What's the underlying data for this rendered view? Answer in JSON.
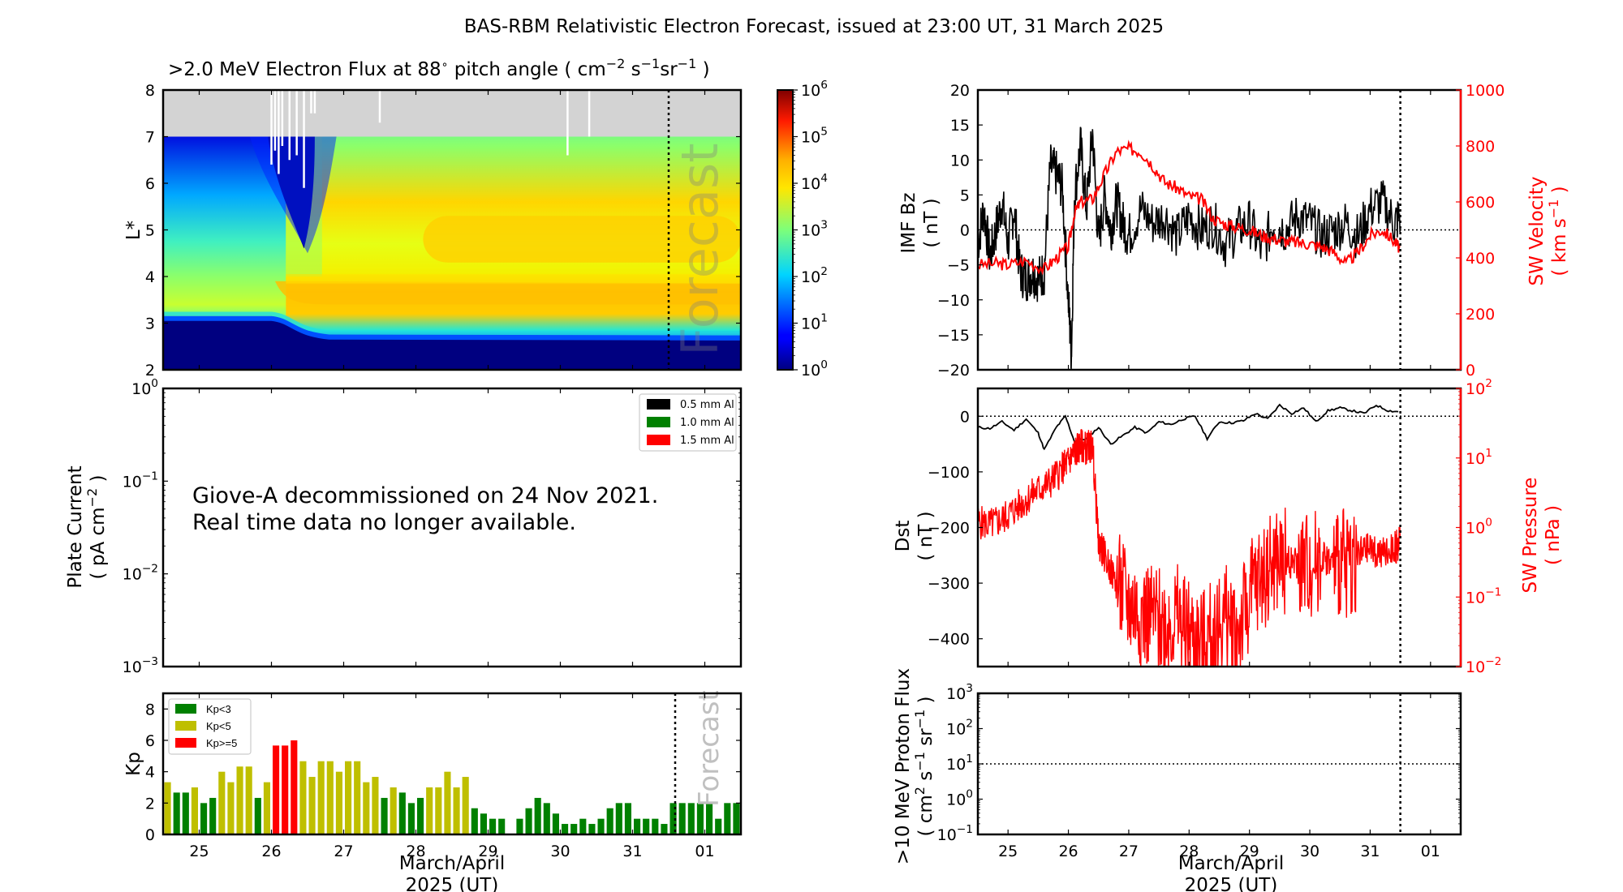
{
  "figure": {
    "title": "BAS-RBM Relativistic Electron Forecast, issued at 23:00 UT, 31 March 2025",
    "xlabel_line1": "March/April",
    "xlabel_line2": "2025 (UT)",
    "day_ticks": [
      "25",
      "26",
      "27",
      "28",
      "29",
      "30",
      "31",
      "01"
    ],
    "forecast_label": "Forecast",
    "forecast_boundary": "31 March 2025 12:00 UT"
  },
  "chart_data": [
    {
      "id": "electron_flux",
      "type": "heatmap",
      "title": ">2.0 MeV Electron Flux at 88° pitch angle (cm^-2 s^-1 sr^-1)",
      "title_parts": {
        "main": ">2.0 MeV Electron Flux at 88",
        "deg": "∘",
        "pitch": " pitch angle ( cm",
        "exp1": "−2",
        "s": " s",
        "exp2": "−1",
        "sr": "sr",
        "exp3": "−1",
        "close": " )"
      },
      "ylabel": "L*",
      "ylim": [
        2,
        8
      ],
      "yticks": [
        "2",
        "3",
        "4",
        "5",
        "6",
        "7",
        "8"
      ],
      "xlim_days": [
        24.5,
        32.5
      ],
      "no_data_region_L": [
        7,
        8
      ],
      "colorbar": {
        "scale": "log",
        "range": [
          1,
          1000000
        ],
        "ticks": [
          "10^0",
          "10^1",
          "10^2",
          "10^3",
          "10^4",
          "10^5",
          "10^6"
        ],
        "colormap": "jet"
      },
      "features": [
        {
          "description": "inner-belt slot boundary (deep blue below)",
          "L_before_26": 3.1,
          "L_after_27": 2.65
        },
        {
          "description": "outer belt peak (orange, ~10^4.3)",
          "L_range": [
            3.3,
            3.9
          ],
          "from_day": 26.2
        },
        {
          "description": "dropout (dark blue) during storm",
          "days": [
            26.0,
            26.7
          ],
          "L_range": [
            4.6,
            7.0
          ]
        },
        {
          "description": "high-L enhancement (orange, ~10^4)",
          "L_range": [
            4.3,
            5.2
          ],
          "from_day": 28.0
        }
      ]
    },
    {
      "id": "plate_current",
      "type": "line",
      "ylabel": "Plate Current",
      "yunit_parts": {
        "open": "( pA cm",
        "exp": "−2",
        "close": " )"
      },
      "yscale": "log",
      "ylim": [
        0.001,
        1
      ],
      "yticks": [
        "10^-3",
        "10^-2",
        "10^-1",
        "10^0"
      ],
      "legend": [
        {
          "label": "0.5 mm Al",
          "color": "#000000"
        },
        {
          "label": "1.0 mm Al",
          "color": "#008000"
        },
        {
          "label": "1.5 mm Al",
          "color": "#ff0000"
        }
      ],
      "legend_position": "top-right",
      "annotation_line1": "Giove-A decommissioned on 24 Nov 2021.",
      "annotation_line2": "Real time data no longer available.",
      "series": []
    },
    {
      "id": "kp",
      "type": "bar",
      "ylabel": "Kp",
      "ylim": [
        0,
        9
      ],
      "yticks": [
        "0",
        "2",
        "4",
        "6",
        "8"
      ],
      "bar_interval_hours": 3,
      "start_day": 24.5,
      "legend": [
        {
          "label": "Kp<3",
          "color": "#008000"
        },
        {
          "label": "Kp<5",
          "color": "#bfbf00"
        },
        {
          "label": "Kp>=5",
          "color": "#ff0000"
        }
      ],
      "legend_position": "top-left",
      "values": [
        3.33,
        2.67,
        2.67,
        3.0,
        2.0,
        2.33,
        4.0,
        3.33,
        4.33,
        4.33,
        2.33,
        3.33,
        5.67,
        5.67,
        6.0,
        4.67,
        3.67,
        4.67,
        4.67,
        4.0,
        4.67,
        4.67,
        3.33,
        3.67,
        2.33,
        3.0,
        2.67,
        2.0,
        2.33,
        3.0,
        3.0,
        4.0,
        3.0,
        3.67,
        1.67,
        1.33,
        1.0,
        1.0,
        0,
        1.0,
        1.67,
        2.33,
        2.0,
        1.33,
        0.67,
        0.67,
        1.0,
        0.67,
        1.0,
        1.67,
        2.0,
        2.0,
        1.0,
        1.0,
        1.0,
        0.67,
        2.0,
        2.0,
        2.0,
        2.0,
        2.0,
        1.0,
        2.0,
        2.0
      ]
    },
    {
      "id": "imf_sw_velocity",
      "type": "line",
      "ylabel_left": "IMF Bz",
      "yunit_left": "( nT )",
      "ylim_left": [
        -20,
        20
      ],
      "yticks_left": [
        "−20",
        "−15",
        "−10",
        "−5",
        "0",
        "5",
        "10",
        "15",
        "20"
      ],
      "ylabel_right": "SW Velocity",
      "yunit_right_parts": {
        "open": "( km s",
        "exp": "−1",
        "close": " )"
      },
      "ylim_right": [
        0,
        1000
      ],
      "yticks_right": [
        "0",
        "200",
        "400",
        "600",
        "800",
        "1000"
      ],
      "reference_line_left": 0,
      "series": [
        {
          "name": "IMF Bz (nT)",
          "color": "#000000",
          "axis": "left",
          "x_days": [
            24.5,
            24.6,
            24.7,
            24.8,
            24.9,
            25.0,
            25.1,
            25.2,
            25.3,
            25.4,
            25.5,
            25.6,
            25.7,
            25.8,
            25.9,
            26.0,
            26.05,
            26.1,
            26.2,
            26.3,
            26.4,
            26.5,
            26.6,
            26.7,
            26.8,
            26.9,
            27.0,
            27.2,
            27.4,
            27.6,
            27.8,
            28.0,
            28.2,
            28.4,
            28.6,
            28.8,
            29.0,
            29.2,
            29.4,
            29.6,
            29.8,
            30.0,
            30.2,
            30.4,
            30.6,
            30.8,
            31.0,
            31.2,
            31.4,
            31.5
          ],
          "y": [
            -2,
            3,
            -4,
            0,
            4,
            -2,
            3,
            -6,
            -7,
            -6,
            -7,
            -6,
            9,
            8,
            6,
            -10,
            -18,
            5,
            12,
            3,
            14,
            -2,
            5,
            0,
            4,
            1,
            -1,
            3,
            1,
            2,
            -1,
            2,
            0,
            1,
            -2,
            0,
            1,
            -3,
            1,
            0,
            2,
            1,
            -1,
            0,
            1,
            -1,
            3,
            4,
            1,
            2
          ]
        },
        {
          "name": "SW Velocity (km/s)",
          "color": "#ff0000",
          "axis": "right",
          "x_days": [
            24.5,
            24.8,
            25.0,
            25.3,
            25.6,
            25.8,
            26.0,
            26.1,
            26.2,
            26.4,
            26.6,
            26.8,
            27.0,
            27.2,
            27.4,
            27.6,
            27.8,
            28.0,
            28.2,
            28.4,
            28.6,
            28.8,
            29.0,
            29.2,
            29.4,
            29.6,
            29.8,
            30.0,
            30.2,
            30.4,
            30.6,
            30.8,
            31.0,
            31.2,
            31.4,
            31.5
          ],
          "y": [
            375,
            380,
            375,
            390,
            360,
            400,
            440,
            560,
            600,
            610,
            700,
            780,
            790,
            780,
            730,
            670,
            650,
            620,
            610,
            540,
            520,
            510,
            500,
            480,
            470,
            460,
            455,
            450,
            440,
            420,
            380,
            420,
            480,
            500,
            460,
            430
          ]
        }
      ]
    },
    {
      "id": "dst_sw_pressure",
      "type": "line",
      "ylabel_left": "Dst",
      "yunit_left": "( nT )",
      "ylim_left": [
        -450,
        50
      ],
      "yticks_left": [
        "−400",
        "−300",
        "−200",
        "−100",
        "0"
      ],
      "ylabel_right": "SW Pressure",
      "yunit_right": "( nPa )",
      "yscale_right": "log",
      "ylim_right": [
        0.01,
        100
      ],
      "yticks_right": [
        "10^-2",
        "10^-1",
        "10^0",
        "10^1",
        "10^2"
      ],
      "reference_line_left": 0,
      "series": [
        {
          "name": "Dst (nT)",
          "color": "#000000",
          "axis": "left",
          "x_days": [
            24.5,
            24.7,
            24.9,
            25.1,
            25.3,
            25.5,
            25.6,
            25.8,
            25.95,
            26.1,
            26.3,
            26.5,
            26.7,
            26.9,
            27.1,
            27.3,
            27.5,
            27.7,
            27.9,
            28.1,
            28.3,
            28.5,
            28.7,
            28.9,
            29.1,
            29.3,
            29.5,
            29.7,
            29.9,
            30.1,
            30.3,
            30.5,
            30.7,
            30.9,
            31.1,
            31.3,
            31.5
          ],
          "y": [
            -20,
            -22,
            -10,
            -25,
            -5,
            -30,
            -60,
            -20,
            0,
            -45,
            -40,
            -20,
            -50,
            -35,
            -20,
            -30,
            -10,
            -15,
            -5,
            0,
            -40,
            -10,
            -12,
            -8,
            5,
            -5,
            20,
            5,
            15,
            -10,
            10,
            15,
            10,
            5,
            20,
            10,
            8
          ]
        },
        {
          "name": "SW Pressure (nPa)",
          "color": "#ff0000",
          "axis": "right",
          "x_days": [
            24.5,
            24.7,
            24.9,
            25.1,
            25.3,
            25.5,
            25.7,
            25.9,
            26.0,
            26.1,
            26.2,
            26.3,
            26.4,
            26.5,
            26.6,
            26.8,
            27.0,
            27.2,
            27.4,
            27.6,
            27.8,
            28.0,
            28.2,
            28.4,
            28.6,
            28.8,
            29.0,
            29.2,
            29.4,
            29.6,
            29.8,
            30.0,
            30.2,
            30.4,
            30.6,
            30.8,
            31.0,
            31.2,
            31.4,
            31.5
          ],
          "y": [
            1.2,
            1.1,
            1.3,
            1.8,
            2.5,
            3.5,
            4.5,
            7,
            9,
            12,
            15,
            14,
            15,
            0.6,
            0.4,
            0.15,
            0.08,
            0.06,
            0.05,
            0.04,
            0.05,
            0.03,
            0.02,
            0.03,
            0.05,
            0.03,
            0.1,
            0.2,
            0.3,
            0.35,
            0.3,
            0.3,
            0.4,
            0.3,
            0.3,
            0.4,
            0.5,
            0.4,
            0.5,
            0.6
          ]
        }
      ]
    },
    {
      "id": "proton_flux",
      "type": "line",
      "ylabel": ">10 MeV Proton Flux",
      "yunit_parts": {
        "open": "( cm",
        "exp1": "2",
        "s": " s",
        "exp2": "−1",
        "sr": " sr",
        "exp3": "−1",
        "close": " )"
      },
      "yscale": "log",
      "ylim": [
        0.1,
        1000
      ],
      "yticks": [
        "10^-1",
        "10^0",
        "10^1",
        "10^2",
        "10^3"
      ],
      "reference_line": 10,
      "series": []
    }
  ]
}
